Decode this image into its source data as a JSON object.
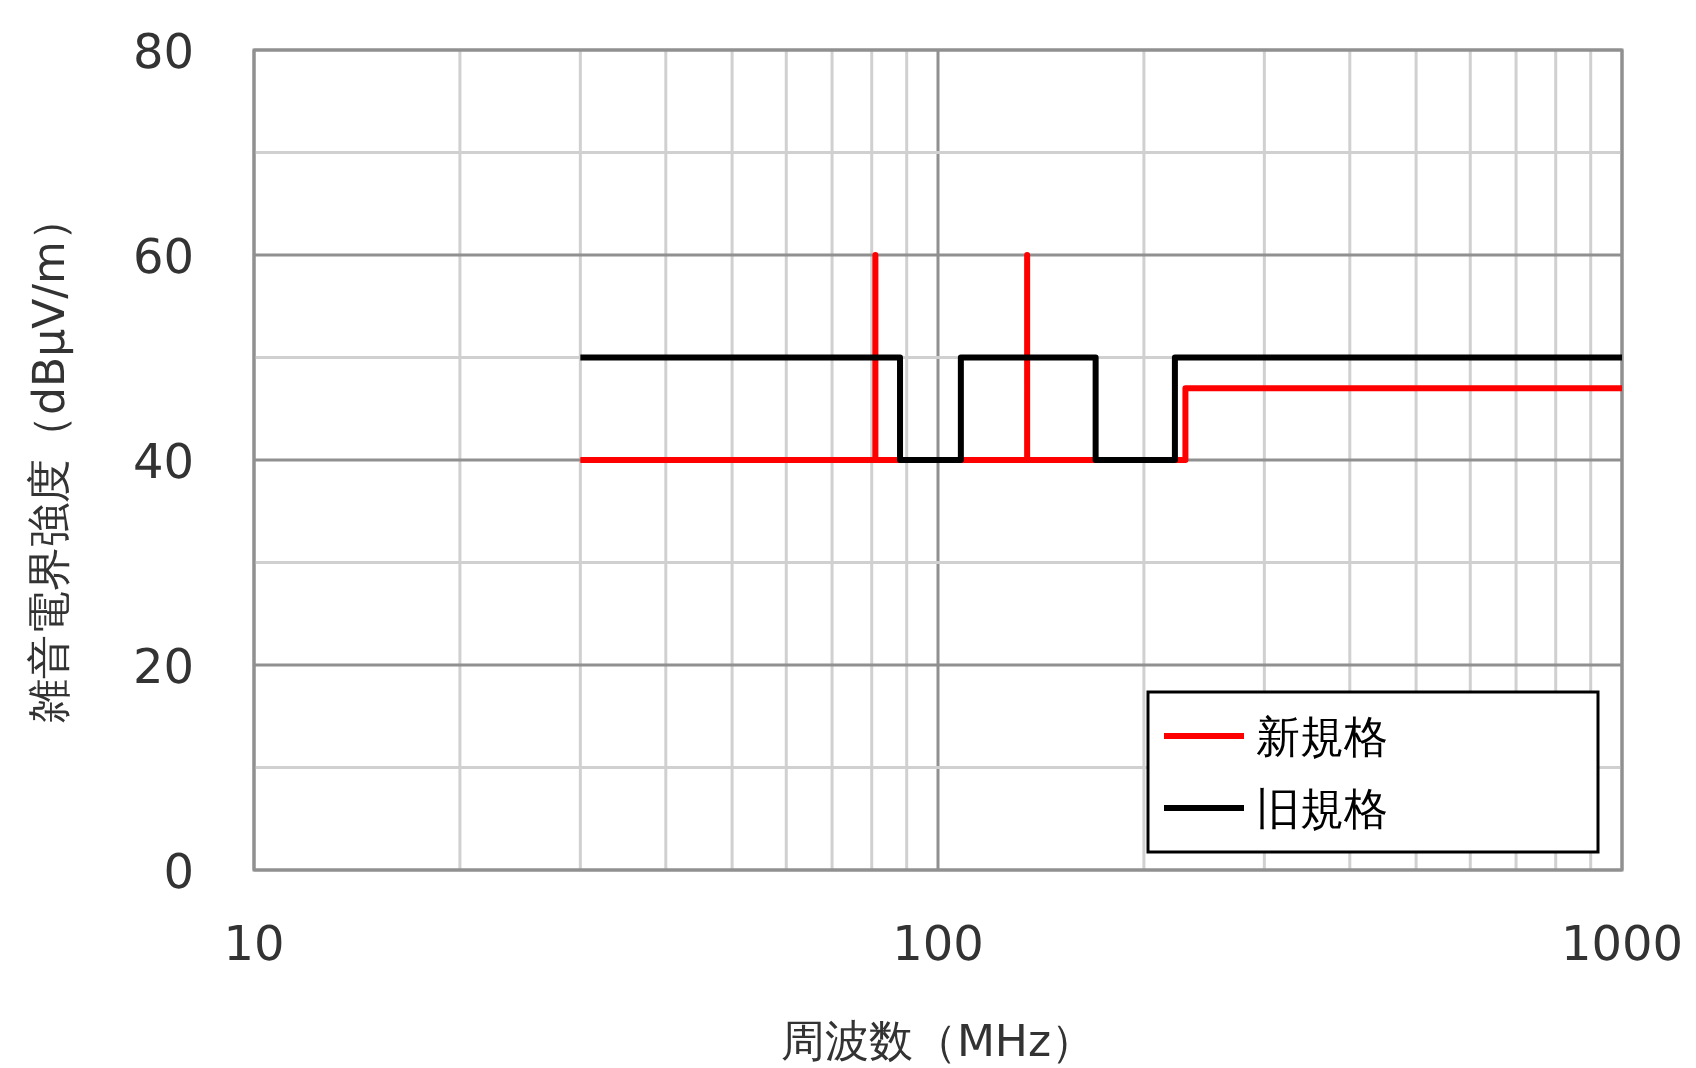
{
  "chart_data": {
    "type": "line",
    "xlabel": "周波数（MHz）",
    "ylabel": "雑音電界強度（dBμV/m）",
    "log": "x",
    "grid": true,
    "legend": "bottom right",
    "line_style": "solid",
    "xlim": [
      10,
      1000
    ],
    "ylim": [
      0,
      80
    ],
    "xticks": [
      10,
      {
        "value": 20,
        "label": null
      },
      {
        "value": 30,
        "label": null
      },
      {
        "value": 40,
        "label": null
      },
      {
        "value": 50,
        "label": null
      },
      {
        "value": 60,
        "label": null
      },
      {
        "value": 70,
        "label": null
      },
      {
        "value": 80,
        "label": null
      },
      {
        "value": 90,
        "label": null
      },
      100,
      {
        "value": 200,
        "label": null
      },
      {
        "value": 300,
        "label": null
      },
      {
        "value": 400,
        "label": null
      },
      {
        "value": 500,
        "label": null
      },
      {
        "value": 600,
        "label": null
      },
      {
        "value": 700,
        "label": null
      },
      {
        "value": 800,
        "label": null
      },
      {
        "value": 900,
        "label": null
      },
      1000
    ],
    "yticks": [
      0,
      {
        "value": 10,
        "label": null
      },
      20,
      {
        "value": 30,
        "label": null
      },
      40,
      {
        "value": 50,
        "label": null
      },
      60,
      {
        "value": 70,
        "label": null
      },
      80
    ],
    "series": [
      {
        "name": "新規格",
        "color": "#ff0000",
        "x": [
          30,
          81,
          81,
          81,
          135,
          135,
          135,
          230,
          230,
          1000
        ],
        "values": [
          40,
          40,
          60,
          40,
          40,
          60,
          40,
          40,
          47,
          47
        ]
      },
      {
        "name": "旧規格",
        "color": "#000000",
        "x": [
          30,
          88,
          88,
          108,
          108,
          170,
          170,
          222,
          222,
          1000
        ],
        "values": [
          50,
          50,
          40,
          40,
          50,
          50,
          40,
          40,
          50,
          50
        ]
      }
    ]
  }
}
